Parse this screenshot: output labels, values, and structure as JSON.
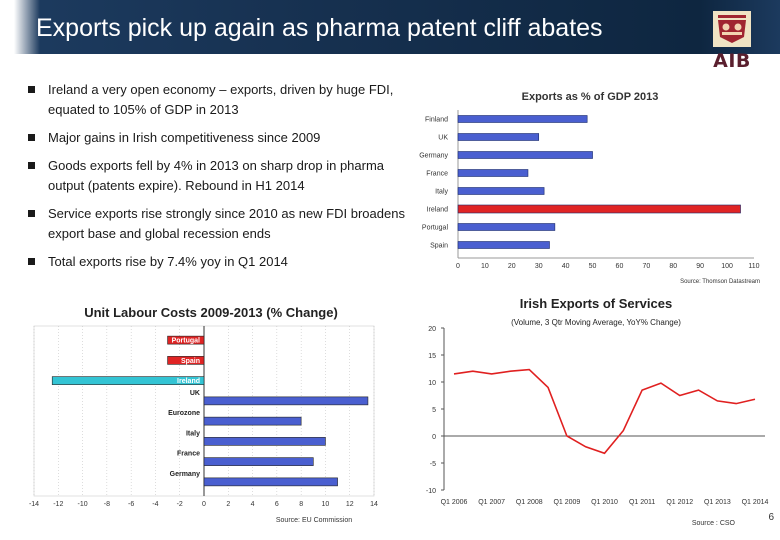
{
  "slide": {
    "title": "Exports pick up again as pharma patent cliff abates",
    "logo_text": "AIB",
    "page_number": "6",
    "bullets": [
      "Ireland a very open economy – exports, driven by huge FDI, equated to 105% of GDP in 2013",
      "Major gains in Irish competitiveness since 2009",
      "Goods exports fell by 4% in 2013 on sharp drop in pharma output (patents expire). Rebound in H1 2014",
      "Service exports rise strongly since 2010 as new FDI broadens export base and global recession ends",
      "Total exports rise by 7.4% yoy in Q1 2014"
    ]
  },
  "colors": {
    "header_bg": "#16304f",
    "blue_bar": "#4a5fd0",
    "red_bar": "#e02424",
    "cyan_bar": "#33c4d4",
    "line": "#e02020",
    "bullet": "#1a1a1a"
  },
  "chart_data": [
    {
      "type": "bar",
      "orientation": "horizontal",
      "title": "Exports as % of GDP 2013",
      "categories": [
        "Finland",
        "UK",
        "Germany",
        "France",
        "Italy",
        "Ireland",
        "Portugal",
        "Spain"
      ],
      "values": [
        48,
        30,
        50,
        26,
        32,
        105,
        36,
        34
      ],
      "highlight": "Ireland",
      "xlim": [
        0,
        110
      ],
      "xticks": [
        0,
        10,
        20,
        30,
        40,
        50,
        60,
        70,
        80,
        90,
        100,
        110
      ],
      "source": "Source: Thomson Datastream"
    },
    {
      "type": "bar",
      "orientation": "horizontal",
      "title": "Unit Labour Costs 2009-2013 (% Change)",
      "categories": [
        "Portugal",
        "Spain",
        "Ireland",
        "UK",
        "Eurozone",
        "Italy",
        "France",
        "Germany"
      ],
      "values": [
        -3,
        -3,
        -12.5,
        13.5,
        8,
        10,
        9,
        11
      ],
      "xlim": [
        -14,
        14
      ],
      "xticks": [
        -14,
        -12,
        -10,
        -8,
        -6,
        -4,
        -2,
        0,
        2,
        4,
        6,
        8,
        10,
        12,
        14
      ],
      "source": "Source: EU Commission"
    },
    {
      "type": "line",
      "title": "Irish Exports of Services",
      "subtitle": "(Volume, 3 Qtr Moving Average, YoY% Change)",
      "x": [
        "Q1 2006",
        "Q3 2006",
        "Q1 2007",
        "Q3 2007",
        "Q1 2008",
        "Q3 2008",
        "Q1 2009",
        "Q3 2009",
        "Q1 2010",
        "Q3 2010",
        "Q1 2011",
        "Q3 2011",
        "Q1 2012",
        "Q3 2012",
        "Q1 2013",
        "Q3 2013",
        "Q1 2014"
      ],
      "xticks": [
        "Q1 2006",
        "Q1 2007",
        "Q1 2008",
        "Q1 2009",
        "Q1 2010",
        "Q1 2011",
        "Q1 2012",
        "Q1 2013",
        "Q1 2014"
      ],
      "series": [
        {
          "values": [
            11.5,
            12.0,
            11.5,
            12.0,
            12.3,
            9.0,
            0.0,
            -2.0,
            -3.2,
            1.0,
            8.5,
            9.8,
            7.5,
            8.5,
            6.5,
            6.0,
            6.8
          ]
        }
      ],
      "ylim": [
        -10,
        20
      ],
      "yticks": [
        -10,
        -5,
        0,
        5,
        10,
        15,
        20
      ],
      "source": "Source : CSO"
    }
  ]
}
